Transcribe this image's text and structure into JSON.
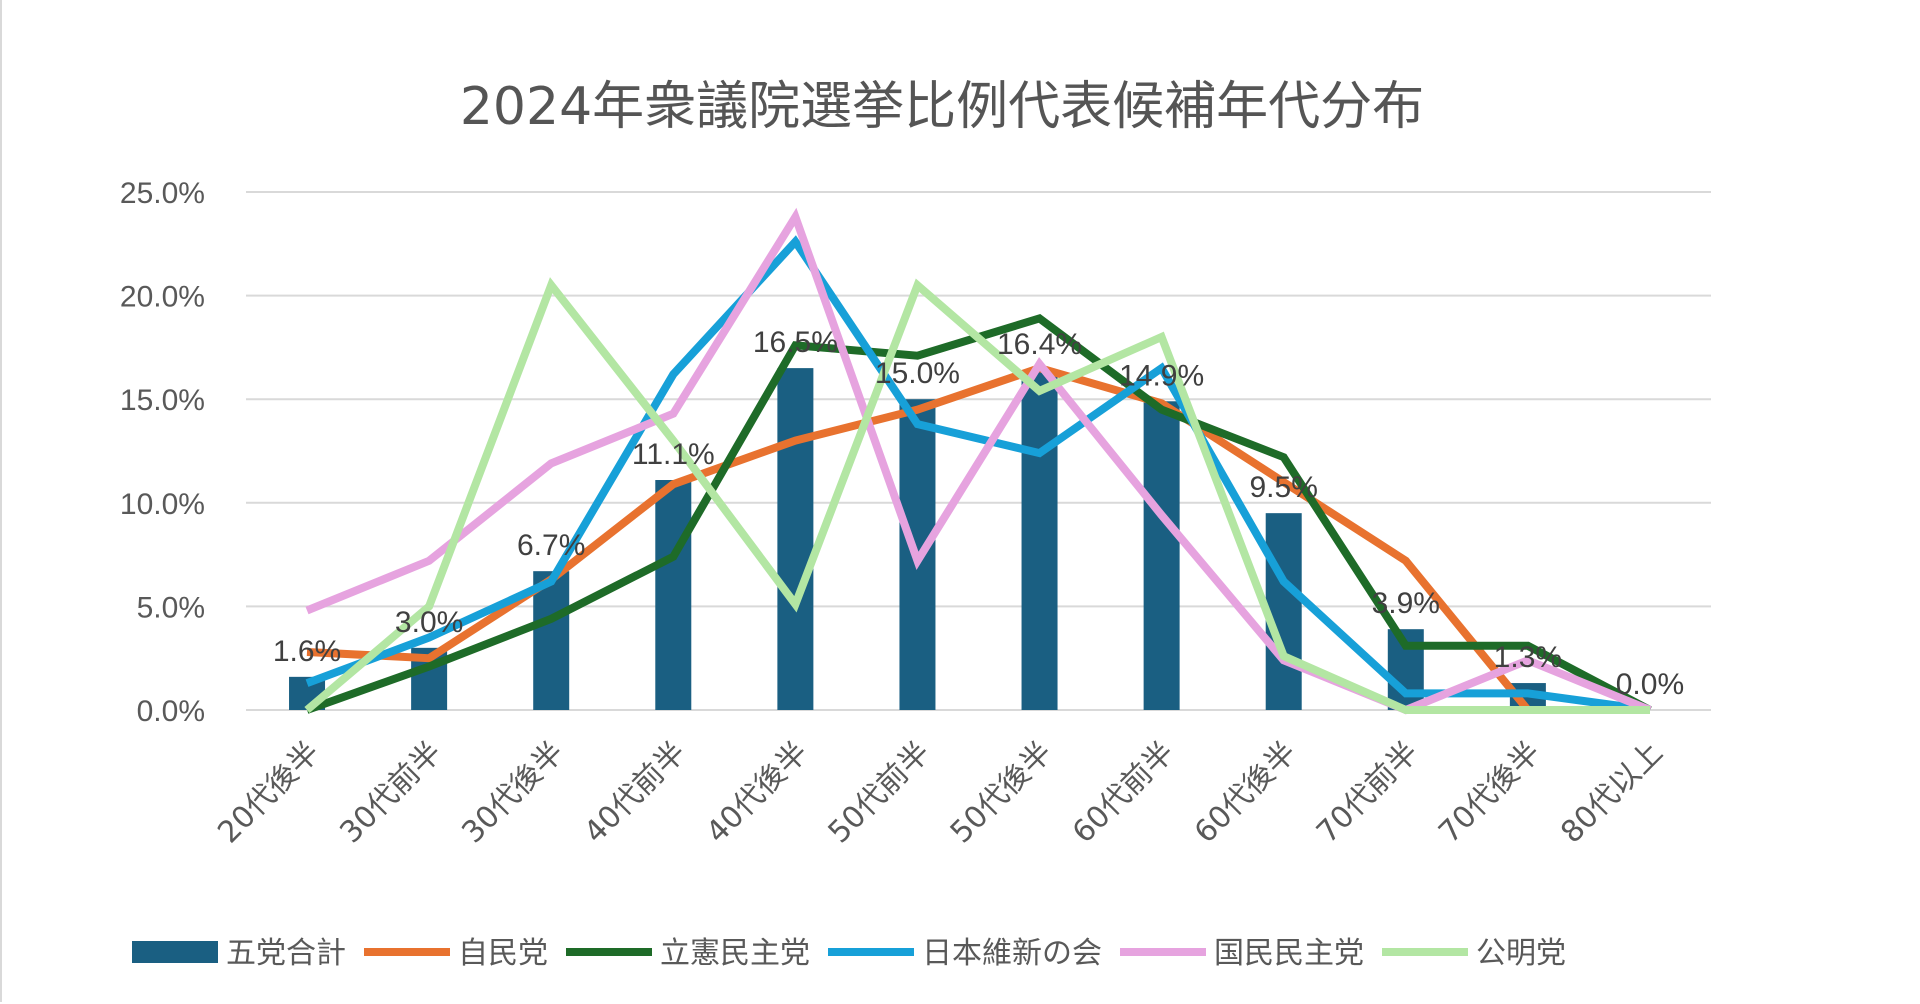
{
  "chart_data": {
    "type": "bar",
    "title": "2024年衆議院選挙比例代表候補年代分布",
    "categories": [
      "20代後半",
      "30代前半",
      "30代後半",
      "40代前半",
      "40代後半",
      "50代前半",
      "50代後半",
      "60代前半",
      "60代後半",
      "70代前半",
      "70代後半",
      "80代以上"
    ],
    "ylim": [
      0,
      25
    ],
    "yticks": [
      "0.0%",
      "5.0%",
      "10.0%",
      "15.0%",
      "20.0%",
      "25.0%"
    ],
    "grid": true,
    "legend_position": "bottom",
    "bar_series": {
      "name": "五党合計",
      "color": "#1a5f82",
      "values": [
        1.6,
        3.0,
        6.7,
        11.1,
        16.5,
        15.0,
        16.4,
        14.9,
        9.5,
        3.9,
        1.3,
        0.0
      ],
      "data_labels": [
        "1.6%",
        "3.0%",
        "6.7%",
        "11.1%",
        "16.5%",
        "15.0%",
        "16.4%",
        "14.9%",
        "9.5%",
        "3.9%",
        "1.3%",
        "0.0%"
      ]
    },
    "line_series": [
      {
        "name": "自民党",
        "color": "#e8722f",
        "values": [
          2.8,
          2.5,
          6.3,
          10.9,
          13.0,
          14.5,
          16.5,
          14.8,
          11.0,
          7.2,
          0.0,
          0.0
        ]
      },
      {
        "name": "立憲民主党",
        "color": "#1e6b28",
        "values": [
          0.0,
          2.1,
          4.4,
          7.4,
          17.6,
          17.1,
          18.9,
          14.5,
          12.2,
          3.1,
          3.1,
          0.0
        ]
      },
      {
        "name": "日本維新の会",
        "color": "#17a0d8",
        "values": [
          1.3,
          3.5,
          6.2,
          16.2,
          22.6,
          13.8,
          12.4,
          16.5,
          6.2,
          0.8,
          0.8,
          0.0
        ]
      },
      {
        "name": "国民民主党",
        "color": "#e6a3df",
        "values": [
          4.8,
          7.2,
          11.9,
          14.3,
          23.8,
          7.2,
          16.7,
          9.4,
          2.4,
          0.0,
          2.4,
          0.0
        ]
      },
      {
        "name": "公明党",
        "color": "#b3e6a3",
        "values": [
          0.0,
          5.0,
          20.5,
          13.0,
          5.1,
          20.5,
          15.4,
          18.0,
          2.6,
          0.0,
          0.0,
          0.0
        ]
      }
    ]
  }
}
